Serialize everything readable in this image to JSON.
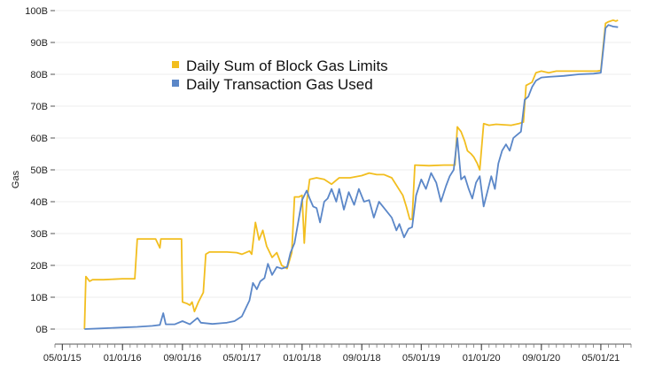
{
  "chart_data": {
    "type": "line",
    "title": "",
    "xlabel": "",
    "ylabel": "Gas",
    "ylim": [
      0,
      100
    ],
    "y_unit_suffix": "B",
    "y_ticks": [
      "0B",
      "10B",
      "20B",
      "30B",
      "40B",
      "50B",
      "60B",
      "70B",
      "80B",
      "90B",
      "100B"
    ],
    "y_tick_values": [
      0,
      10,
      20,
      30,
      40,
      50,
      60,
      70,
      80,
      90,
      100
    ],
    "x_ticks": [
      "05/01/15",
      "01/01/16",
      "05/01/17",
      "01/01/18",
      "09/01/18",
      "05/01/19",
      "01/01/20",
      "09/01/20",
      "05/01/21"
    ],
    "x_tick_dates": [
      "2015-05-01",
      "2016-01-01",
      "2017-05-01",
      "2018-01-01",
      "2018-09-01",
      "2019-05-01",
      "2020-01-01",
      "2020-09-01",
      "2021-05-01"
    ],
    "extra_x_tick": {
      "label": "09/01/16",
      "date": "2016-09-01"
    },
    "x_range": [
      "2015-04-01",
      "2021-09-01"
    ],
    "grid": true,
    "legend_position": "top-center",
    "series": [
      {
        "name": "Daily Sum of Block Gas Limits",
        "color": "#F2BE1F",
        "points": [
          [
            "2015-07-30",
            0
          ],
          [
            "2015-08-05",
            16.5
          ],
          [
            "2015-08-20",
            15
          ],
          [
            "2015-09-01",
            15.5
          ],
          [
            "2015-10-15",
            15.5
          ],
          [
            "2016-01-01",
            15.8
          ],
          [
            "2016-02-20",
            15.8
          ],
          [
            "2016-03-01",
            28.3
          ],
          [
            "2016-04-15",
            28.3
          ],
          [
            "2016-05-15",
            28.3
          ],
          [
            "2016-06-01",
            25.5
          ],
          [
            "2016-06-05",
            28.3
          ],
          [
            "2016-08-28",
            28.3
          ],
          [
            "2016-09-01",
            8.5
          ],
          [
            "2016-09-20",
            8
          ],
          [
            "2016-10-01",
            7.5
          ],
          [
            "2016-10-10",
            8.5
          ],
          [
            "2016-10-20",
            5.5
          ],
          [
            "2016-11-05",
            8.5
          ],
          [
            "2016-11-25",
            11.5
          ],
          [
            "2016-12-05",
            23.5
          ],
          [
            "2016-12-20",
            24.2
          ],
          [
            "2017-03-01",
            24.2
          ],
          [
            "2017-04-10",
            24.0
          ],
          [
            "2017-05-01",
            23.5
          ],
          [
            "2017-06-01",
            24.5
          ],
          [
            "2017-06-10",
            23.5
          ],
          [
            "2017-06-25",
            33.5
          ],
          [
            "2017-07-10",
            28
          ],
          [
            "2017-07-25",
            31
          ],
          [
            "2017-08-10",
            26
          ],
          [
            "2017-09-01",
            22.5
          ],
          [
            "2017-09-20",
            24
          ],
          [
            "2017-10-10",
            20
          ],
          [
            "2017-11-01",
            19
          ],
          [
            "2017-11-20",
            24
          ],
          [
            "2017-12-01",
            41.5
          ],
          [
            "2017-12-20",
            41.5
          ],
          [
            "2018-01-01",
            42
          ],
          [
            "2018-01-10",
            27
          ],
          [
            "2018-01-20",
            40
          ],
          [
            "2018-02-01",
            47
          ],
          [
            "2018-03-01",
            47.5
          ],
          [
            "2018-04-01",
            47
          ],
          [
            "2018-05-01",
            45.5
          ],
          [
            "2018-06-01",
            47.5
          ],
          [
            "2018-07-15",
            47.5
          ],
          [
            "2018-09-01",
            48.2
          ],
          [
            "2018-10-01",
            49
          ],
          [
            "2018-11-01",
            48.5
          ],
          [
            "2018-12-01",
            48.5
          ],
          [
            "2019-01-01",
            47.5
          ],
          [
            "2019-02-15",
            42
          ],
          [
            "2019-03-01",
            38.5
          ],
          [
            "2019-03-15",
            34.5
          ],
          [
            "2019-03-25",
            34.5
          ],
          [
            "2019-04-05",
            51.5
          ],
          [
            "2019-06-01",
            51.3
          ],
          [
            "2019-08-01",
            51.5
          ],
          [
            "2019-09-15",
            51.5
          ],
          [
            "2019-09-25",
            63.5
          ],
          [
            "2019-10-10",
            62
          ],
          [
            "2019-10-25",
            59
          ],
          [
            "2019-11-05",
            56
          ],
          [
            "2019-11-20",
            55
          ],
          [
            "2019-12-01",
            54
          ],
          [
            "2019-12-15",
            52
          ],
          [
            "2019-12-25",
            50
          ],
          [
            "2020-01-10",
            64.5
          ],
          [
            "2020-02-01",
            64
          ],
          [
            "2020-03-01",
            64.3
          ],
          [
            "2020-05-01",
            64
          ],
          [
            "2020-06-01",
            64.5
          ],
          [
            "2020-06-20",
            65
          ],
          [
            "2020-07-01",
            76.5
          ],
          [
            "2020-07-25",
            77.5
          ],
          [
            "2020-08-10",
            80.5
          ],
          [
            "2020-09-01",
            81
          ],
          [
            "2020-10-01",
            80.5
          ],
          [
            "2020-11-01",
            81
          ],
          [
            "2021-01-01",
            81
          ],
          [
            "2021-03-01",
            81
          ],
          [
            "2021-04-15",
            81
          ],
          [
            "2021-05-01",
            81.2
          ],
          [
            "2021-05-20",
            96
          ],
          [
            "2021-06-01",
            96.5
          ],
          [
            "2021-06-20",
            97
          ],
          [
            "2021-07-01",
            96.7
          ],
          [
            "2021-07-10",
            97
          ]
        ]
      },
      {
        "name": "Daily Transaction Gas Used",
        "color": "#5B87C8",
        "points": [
          [
            "2015-07-30",
            0
          ],
          [
            "2015-10-01",
            0.2
          ],
          [
            "2016-01-01",
            0.5
          ],
          [
            "2016-03-01",
            0.7
          ],
          [
            "2016-05-01",
            1
          ],
          [
            "2016-06-01",
            1.3
          ],
          [
            "2016-06-15",
            5
          ],
          [
            "2016-06-25",
            1.5
          ],
          [
            "2016-08-01",
            1.5
          ],
          [
            "2016-09-01",
            2.5
          ],
          [
            "2016-10-01",
            1.5
          ],
          [
            "2016-11-01",
            3.5
          ],
          [
            "2016-11-15",
            2
          ],
          [
            "2017-01-01",
            1.6
          ],
          [
            "2017-03-01",
            2
          ],
          [
            "2017-04-01",
            2.5
          ],
          [
            "2017-05-01",
            4
          ],
          [
            "2017-06-01",
            9
          ],
          [
            "2017-06-15",
            14.5
          ],
          [
            "2017-07-01",
            12.5
          ],
          [
            "2017-07-15",
            15
          ],
          [
            "2017-08-01",
            16
          ],
          [
            "2017-08-15",
            20.5
          ],
          [
            "2017-09-01",
            17
          ],
          [
            "2017-09-20",
            19.5
          ],
          [
            "2017-10-10",
            19
          ],
          [
            "2017-11-01",
            19.5
          ],
          [
            "2017-11-15",
            24
          ],
          [
            "2017-12-01",
            27
          ],
          [
            "2017-12-15",
            33
          ],
          [
            "2018-01-01",
            40.5
          ],
          [
            "2018-01-20",
            43.5
          ],
          [
            "2018-02-01",
            41
          ],
          [
            "2018-02-15",
            38.5
          ],
          [
            "2018-03-01",
            38
          ],
          [
            "2018-03-15",
            33.5
          ],
          [
            "2018-04-01",
            40
          ],
          [
            "2018-04-15",
            41
          ],
          [
            "2018-05-01",
            44
          ],
          [
            "2018-05-20",
            40
          ],
          [
            "2018-06-01",
            44
          ],
          [
            "2018-06-20",
            37.5
          ],
          [
            "2018-07-10",
            43
          ],
          [
            "2018-08-01",
            39
          ],
          [
            "2018-08-20",
            44
          ],
          [
            "2018-09-10",
            40
          ],
          [
            "2018-10-01",
            40.5
          ],
          [
            "2018-10-20",
            35
          ],
          [
            "2018-11-10",
            40
          ],
          [
            "2018-12-01",
            38
          ],
          [
            "2019-01-01",
            35
          ],
          [
            "2019-01-20",
            31
          ],
          [
            "2019-02-01",
            33
          ],
          [
            "2019-02-20",
            28.8
          ],
          [
            "2019-03-10",
            31.5
          ],
          [
            "2019-03-25",
            32
          ],
          [
            "2019-04-10",
            42
          ],
          [
            "2019-05-01",
            47
          ],
          [
            "2019-05-20",
            44
          ],
          [
            "2019-06-10",
            49
          ],
          [
            "2019-07-01",
            46
          ],
          [
            "2019-07-20",
            40
          ],
          [
            "2019-08-10",
            45
          ],
          [
            "2019-08-25",
            48
          ],
          [
            "2019-09-10",
            50
          ],
          [
            "2019-09-25",
            60
          ],
          [
            "2019-10-10",
            47
          ],
          [
            "2019-10-25",
            48
          ],
          [
            "2019-11-10",
            44
          ],
          [
            "2019-11-25",
            41
          ],
          [
            "2019-12-10",
            46
          ],
          [
            "2019-12-25",
            48
          ],
          [
            "2020-01-10",
            38.5
          ],
          [
            "2020-01-25",
            43
          ],
          [
            "2020-02-10",
            48
          ],
          [
            "2020-02-25",
            44
          ],
          [
            "2020-03-10",
            52
          ],
          [
            "2020-03-25",
            56
          ],
          [
            "2020-04-10",
            58
          ],
          [
            "2020-04-25",
            56
          ],
          [
            "2020-05-10",
            60
          ],
          [
            "2020-05-25",
            61
          ],
          [
            "2020-06-10",
            62
          ],
          [
            "2020-06-25",
            72
          ],
          [
            "2020-07-10",
            73
          ],
          [
            "2020-07-25",
            76
          ],
          [
            "2020-08-10",
            78
          ],
          [
            "2020-09-01",
            79
          ],
          [
            "2020-10-01",
            79.2
          ],
          [
            "2020-12-01",
            79.5
          ],
          [
            "2021-02-01",
            80
          ],
          [
            "2021-04-01",
            80.2
          ],
          [
            "2021-05-01",
            80.5
          ],
          [
            "2021-05-20",
            94.5
          ],
          [
            "2021-06-01",
            95.5
          ],
          [
            "2021-06-20",
            95
          ],
          [
            "2021-07-10",
            94.8
          ]
        ]
      }
    ]
  }
}
